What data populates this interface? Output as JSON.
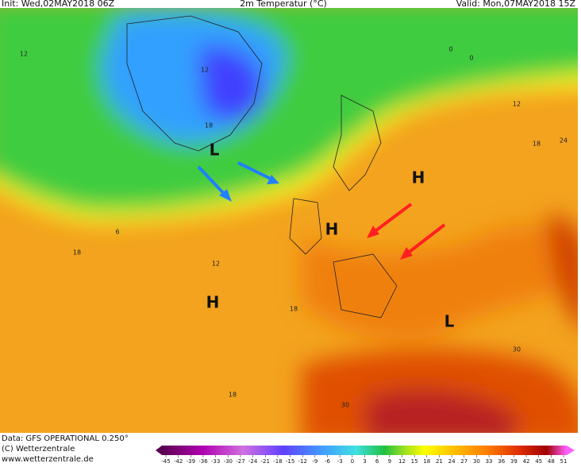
{
  "header": {
    "init": "Init: Wed,02MAY2018 06Z",
    "title": "2m Temperatur (°C)",
    "valid": "Valid: Mon,07MAY2018 15Z"
  },
  "footer": {
    "data": "Data: GFS OPERATIONAL 0.250°",
    "copyright": "(C) Wetterzentrale",
    "url": "www.wetterzentrale.de"
  },
  "colorbar": {
    "ticks": [
      -45,
      -42,
      -39,
      -36,
      -33,
      -30,
      -27,
      -24,
      -21,
      -18,
      -15,
      -12,
      -9,
      -6,
      -3,
      0,
      3,
      6,
      9,
      12,
      15,
      18,
      21,
      24,
      27,
      30,
      33,
      36,
      39,
      42,
      45,
      48,
      51
    ]
  },
  "pressure_centers": [
    {
      "label": "L"
    },
    {
      "label": "H"
    },
    {
      "label": "H"
    },
    {
      "label": "H"
    },
    {
      "label": "L"
    }
  ],
  "contour_labels": [
    "12",
    "0",
    "0",
    "12",
    "18",
    "6",
    "18",
    "12",
    "18",
    "18",
    "30",
    "30",
    "12",
    "18",
    "24"
  ]
}
